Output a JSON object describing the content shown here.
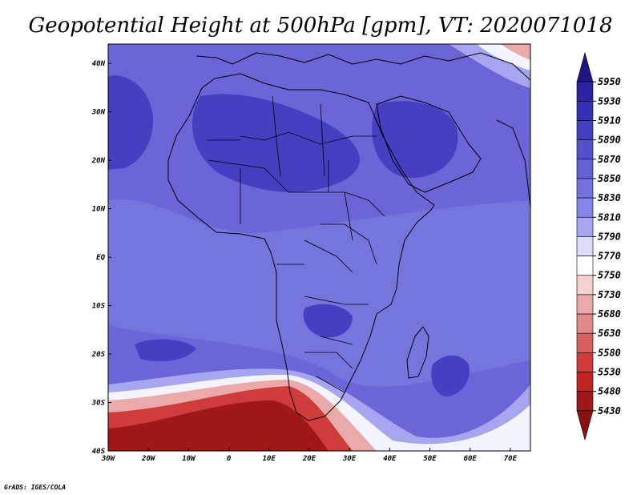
{
  "title": "Geopotential Height at 500hPa [gpm], VT: 2020071018",
  "credit": "GrADS: IGES/COLA",
  "axes": {
    "x_ticks": [
      "30W",
      "20W",
      "10W",
      "0",
      "10E",
      "20E",
      "30E",
      "40E",
      "50E",
      "60E",
      "70E"
    ],
    "y_ticks": [
      "40N",
      "30N",
      "20N",
      "10N",
      "EQ",
      "10S",
      "20S",
      "30S",
      "40S"
    ],
    "lon_range": [
      -30,
      75
    ],
    "lat_range": [
      -40,
      44
    ]
  },
  "colorbar": {
    "levels": [
      "5950",
      "5930",
      "5910",
      "5890",
      "5870",
      "5850",
      "5830",
      "5810",
      "5790",
      "5770",
      "5750",
      "5730",
      "5680",
      "5630",
      "5580",
      "5530",
      "5480",
      "5430"
    ],
    "colors": [
      "#1e1682",
      "#2a24a0",
      "#3630b4",
      "#4540c2",
      "#5450cc",
      "#6460d6",
      "#7572de",
      "#8686e6",
      "#a6a6f0",
      "#dcdcfa",
      "#ffffff",
      "#f4d0d0",
      "#eaaaaa",
      "#e08a8a",
      "#d86060",
      "#d03c3c",
      "#c02424",
      "#a01818",
      "#8c1010"
    ]
  },
  "map": {
    "field_colors": {
      "background": "#6a66d8",
      "high": "#4540c2",
      "moderate": "#7575de",
      "light": "#a6a6f0",
      "white": "#f4f4ff",
      "pink": "#eaaaaa",
      "red": "#d03c3c",
      "dark_red": "#a01818"
    }
  }
}
